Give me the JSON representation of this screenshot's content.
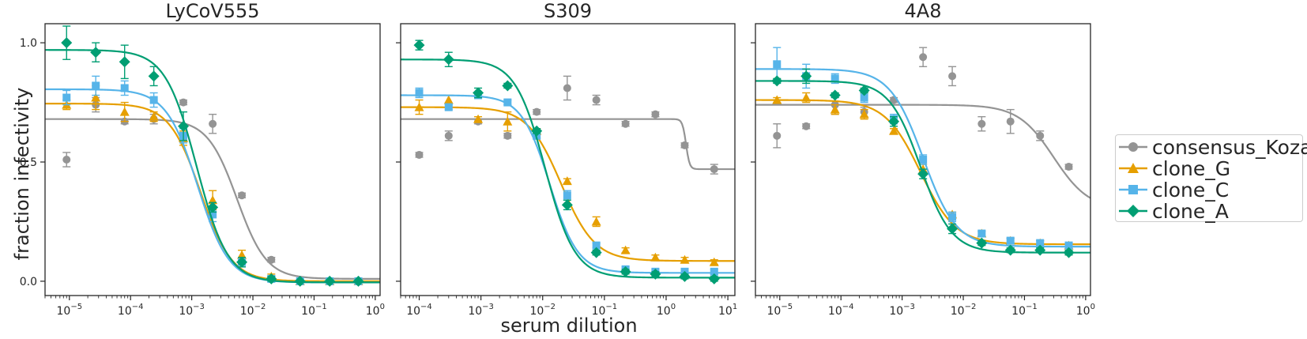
{
  "chart_data": [
    {
      "type": "line",
      "title": "LyCoV555",
      "xscale": "log",
      "xlim": [
        4e-06,
        1.2
      ],
      "ylim": [
        -0.06,
        1.08
      ],
      "xticks": [
        "10^-5",
        "10^-4",
        "10^-3",
        "10^-2",
        "10^-1",
        "10^0"
      ],
      "yticks": [
        "0.0",
        "0.5",
        "1.0"
      ],
      "series": [
        {
          "name": "consensus_Kozak",
          "color": "#949494",
          "marker": "circle",
          "x": [
            9e-06,
            2.7e-05,
            8e-05,
            0.00024,
            0.00073,
            0.0022,
            0.0066,
            0.02,
            0.059,
            0.18,
            0.53
          ],
          "y": [
            0.51,
            0.74,
            0.67,
            0.68,
            0.75,
            0.66,
            0.36,
            0.09,
            0.0,
            0.0,
            0.0
          ],
          "err": [
            0.03,
            0.03,
            0.01,
            0.02,
            0.01,
            0.04,
            0.01,
            0.01,
            0.0,
            0.0,
            0.0
          ],
          "fit": {
            "top": 0.68,
            "bottom": 0.01,
            "ic50": 0.0055,
            "hill": 1.8
          }
        },
        {
          "name": "clone_G",
          "color": "#e69f00",
          "marker": "triangle",
          "x": [
            9e-06,
            2.7e-05,
            8e-05,
            0.00024,
            0.00073,
            0.0022,
            0.0066,
            0.02,
            0.059,
            0.18,
            0.53
          ],
          "y": [
            0.74,
            0.77,
            0.71,
            0.69,
            0.6,
            0.34,
            0.11,
            0.02,
            0.0,
            0.0,
            0.0
          ],
          "err": [
            0.02,
            0.05,
            0.04,
            0.02,
            0.03,
            0.04,
            0.02,
            0.01,
            0.0,
            0.0,
            0.0
          ],
          "fit": {
            "top": 0.745,
            "bottom": 0.0,
            "ic50": 0.0014,
            "hill": 1.7
          }
        },
        {
          "name": "clone_C",
          "color": "#56b4e9",
          "marker": "square",
          "x": [
            9e-06,
            2.7e-05,
            8e-05,
            0.00024,
            0.00073,
            0.0022,
            0.0066,
            0.02,
            0.059,
            0.18,
            0.53
          ],
          "y": [
            0.77,
            0.82,
            0.81,
            0.76,
            0.61,
            0.28,
            0.08,
            0.01,
            0.0,
            0.0,
            0.0
          ],
          "err": [
            0.03,
            0.04,
            0.03,
            0.03,
            0.03,
            0.03,
            0.01,
            0.01,
            0.0,
            0.0,
            0.0
          ],
          "fit": {
            "top": 0.805,
            "bottom": -0.005,
            "ic50": 0.00125,
            "hill": 1.7
          }
        },
        {
          "name": "clone_A",
          "color": "#009e73",
          "marker": "diamond",
          "x": [
            9e-06,
            2.7e-05,
            8e-05,
            0.00024,
            0.00073,
            0.0022,
            0.0066,
            0.02,
            0.059,
            0.18,
            0.53
          ],
          "y": [
            1.0,
            0.96,
            0.92,
            0.86,
            0.65,
            0.31,
            0.08,
            0.01,
            0.0,
            0.0,
            0.0
          ],
          "err": [
            0.07,
            0.04,
            0.07,
            0.04,
            0.06,
            0.02,
            0.02,
            0.01,
            0.0,
            0.0,
            0.0
          ],
          "fit": {
            "top": 0.97,
            "bottom": -0.005,
            "ic50": 0.0012,
            "hill": 1.7
          }
        }
      ]
    },
    {
      "type": "line",
      "title": "S309",
      "xscale": "log",
      "xlim": [
        5e-05,
        13
      ],
      "ylim": [
        -0.06,
        1.08
      ],
      "xticks": [
        "10^-4",
        "10^-3",
        "10^-2",
        "10^-1",
        "10^0",
        "10^1"
      ],
      "yticks": [
        "0.0",
        "0.5",
        "1.0"
      ],
      "series": [
        {
          "name": "consensus_Kozak",
          "color": "#949494",
          "marker": "circle",
          "x": [
            0.0001,
            0.0003,
            0.0009,
            0.0027,
            0.008,
            0.025,
            0.074,
            0.22,
            0.67,
            2.0,
            6.0
          ],
          "y": [
            0.53,
            0.61,
            0.67,
            0.61,
            0.71,
            0.81,
            0.76,
            0.66,
            0.7,
            0.57,
            0.47
          ],
          "err": [
            0.01,
            0.02,
            0.01,
            0.01,
            0.01,
            0.05,
            0.02,
            0.01,
            0.01,
            0.01,
            0.02
          ],
          "fit": {
            "top": 0.68,
            "bottom": 0.47,
            "ic50": 2.1,
            "hill": 15
          }
        },
        {
          "name": "clone_G",
          "color": "#e69f00",
          "marker": "triangle",
          "x": [
            0.0001,
            0.0003,
            0.0009,
            0.0027,
            0.008,
            0.025,
            0.074,
            0.22,
            0.67,
            2.0,
            6.0
          ],
          "y": [
            0.73,
            0.76,
            0.68,
            0.67,
            0.63,
            0.42,
            0.25,
            0.13,
            0.1,
            0.09,
            0.08
          ],
          "err": [
            0.03,
            0.02,
            0.01,
            0.04,
            0.01,
            0.01,
            0.02,
            0.01,
            0.01,
            0.01,
            0.01
          ],
          "fit": {
            "top": 0.73,
            "bottom": 0.085,
            "ic50": 0.02,
            "hill": 1.6
          }
        },
        {
          "name": "clone_C",
          "color": "#56b4e9",
          "marker": "square",
          "x": [
            0.0001,
            0.0003,
            0.0009,
            0.0027,
            0.008,
            0.025,
            0.074,
            0.22,
            0.67,
            2.0,
            6.0
          ],
          "y": [
            0.79,
            0.73,
            0.78,
            0.75,
            0.61,
            0.36,
            0.15,
            0.05,
            0.04,
            0.04,
            0.04
          ],
          "err": [
            0.02,
            0.01,
            0.01,
            0.01,
            0.01,
            0.02,
            0.01,
            0.01,
            0.01,
            0.01,
            0.01
          ],
          "fit": {
            "top": 0.78,
            "bottom": 0.035,
            "ic50": 0.013,
            "hill": 1.9
          }
        },
        {
          "name": "clone_A",
          "color": "#009e73",
          "marker": "diamond",
          "x": [
            0.0001,
            0.0003,
            0.0009,
            0.0027,
            0.008,
            0.025,
            0.074,
            0.22,
            0.67,
            2.0,
            6.0
          ],
          "y": [
            0.99,
            0.93,
            0.79,
            0.82,
            0.63,
            0.32,
            0.12,
            0.04,
            0.03,
            0.02,
            0.01
          ],
          "err": [
            0.02,
            0.03,
            0.02,
            0.01,
            0.01,
            0.02,
            0.01,
            0.01,
            0.01,
            0.01,
            0.01
          ],
          "fit": {
            "top": 0.93,
            "bottom": 0.015,
            "ic50": 0.011,
            "hill": 1.8
          }
        }
      ]
    },
    {
      "type": "line",
      "title": "4A8",
      "xscale": "log",
      "xlim": [
        4e-06,
        1.2
      ],
      "ylim": [
        -0.06,
        1.08
      ],
      "xticks": [
        "10^-5",
        "10^-4",
        "10^-3",
        "10^-2",
        "10^-1",
        "10^0"
      ],
      "yticks": [
        "0.0",
        "0.5",
        "1.0"
      ],
      "series": [
        {
          "name": "consensus_Kozak",
          "color": "#949494",
          "marker": "circle",
          "x": [
            9e-06,
            2.7e-05,
            8e-05,
            0.00024,
            0.00073,
            0.0022,
            0.0066,
            0.02,
            0.059,
            0.18,
            0.53
          ],
          "y": [
            0.61,
            0.65,
            0.74,
            0.71,
            0.76,
            0.94,
            0.86,
            0.66,
            0.67,
            0.61,
            0.48
          ],
          "err": [
            0.05,
            0.01,
            0.04,
            0.02,
            0.01,
            0.04,
            0.04,
            0.03,
            0.05,
            0.02,
            0.01
          ],
          "fit": {
            "top": 0.74,
            "bottom": 0.3,
            "ic50": 0.3,
            "hill": 1.5
          }
        },
        {
          "name": "clone_G",
          "color": "#e69f00",
          "marker": "triangle",
          "x": [
            9e-06,
            2.7e-05,
            8e-05,
            0.00024,
            0.00073,
            0.0022,
            0.0066,
            0.02,
            0.059,
            0.18,
            0.53
          ],
          "y": [
            0.76,
            0.77,
            0.72,
            0.7,
            0.63,
            0.47,
            0.28,
            0.2,
            0.17,
            0.16,
            0.15
          ],
          "err": [
            0.01,
            0.02,
            0.02,
            0.02,
            0.01,
            0.02,
            0.01,
            0.01,
            0.01,
            0.01,
            0.01
          ],
          "fit": {
            "top": 0.76,
            "bottom": 0.155,
            "ic50": 0.002,
            "hill": 1.5
          }
        },
        {
          "name": "clone_C",
          "color": "#56b4e9",
          "marker": "square",
          "x": [
            9e-06,
            2.7e-05,
            8e-05,
            0.00024,
            0.00073,
            0.0022,
            0.0066,
            0.02,
            0.059,
            0.18,
            0.53
          ],
          "y": [
            0.91,
            0.86,
            0.85,
            0.77,
            0.68,
            0.51,
            0.27,
            0.2,
            0.17,
            0.16,
            0.15
          ],
          "err": [
            0.07,
            0.05,
            0.02,
            0.02,
            0.02,
            0.02,
            0.02,
            0.01,
            0.01,
            0.01,
            0.01
          ],
          "fit": {
            "top": 0.89,
            "bottom": 0.145,
            "ic50": 0.0022,
            "hill": 1.6
          }
        },
        {
          "name": "clone_A",
          "color": "#009e73",
          "marker": "diamond",
          "x": [
            9e-06,
            2.7e-05,
            8e-05,
            0.00024,
            0.00073,
            0.0022,
            0.0066,
            0.02,
            0.059,
            0.18,
            0.53
          ],
          "y": [
            0.84,
            0.86,
            0.78,
            0.8,
            0.67,
            0.45,
            0.22,
            0.16,
            0.13,
            0.13,
            0.12
          ],
          "err": [
            0.01,
            0.03,
            0.01,
            0.01,
            0.02,
            0.02,
            0.02,
            0.01,
            0.01,
            0.01,
            0.01
          ],
          "fit": {
            "top": 0.84,
            "bottom": 0.12,
            "ic50": 0.002,
            "hill": 1.7
          }
        }
      ]
    }
  ],
  "figure": {
    "ylabel": "fraction infectivity",
    "xlabel": "serum dilution"
  },
  "legend": {
    "entries": [
      {
        "label": "consensus_Kozak",
        "color": "#949494",
        "marker": "circle"
      },
      {
        "label": "clone_G",
        "color": "#e69f00",
        "marker": "triangle"
      },
      {
        "label": "clone_C",
        "color": "#56b4e9",
        "marker": "square"
      },
      {
        "label": "clone_A",
        "color": "#009e73",
        "marker": "diamond"
      }
    ]
  }
}
